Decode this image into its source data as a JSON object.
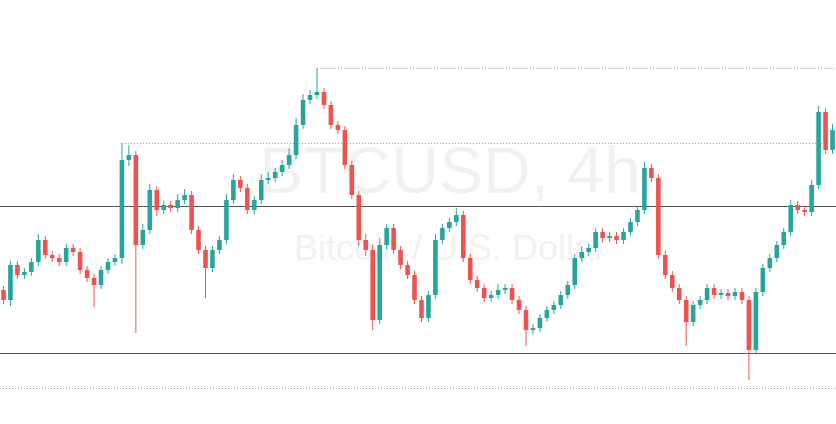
{
  "chart_data": {
    "type": "candlestick",
    "title": "BTCUSD, 4h",
    "subtitle": "Bitcoin / U.S. Dollar",
    "up_color": "#26a69a",
    "down_color": "#ef5350",
    "ylim": [
      0,
      424
    ],
    "levels": [
      {
        "value": 218,
        "style": "solid"
      },
      {
        "value": 71,
        "style": "solid"
      },
      {
        "value": 36,
        "style": "dotted"
      },
      {
        "value": 281,
        "style": "dotted"
      },
      {
        "value": 356,
        "style": "dotted"
      }
    ],
    "open": [
      134,
      124,
      159,
      149,
      152,
      162,
      184,
      169,
      166,
      162,
      176,
      172,
      154,
      146,
      139,
      154,
      162,
      166,
      264,
      269,
      179,
      194,
      234,
      214,
      219,
      216,
      224,
      229,
      194,
      174,
      156,
      174,
      184,
      224,
      244,
      236,
      214,
      224,
      244,
      246,
      252,
      259,
      269,
      299,
      324,
      329,
      332,
      319,
      299,
      294,
      259,
      229,
      184,
      174,
      104,
      179,
      196,
      174,
      159,
      149,
      124,
      106,
      129,
      184,
      196,
      202,
      209,
      166,
      144,
      136,
      126,
      129,
      134,
      136,
      124,
      114,
      94,
      96,
      106,
      114,
      119,
      129,
      139,
      166,
      172,
      176,
      192,
      186,
      188,
      184,
      192,
      202,
      214,
      256,
      246,
      169,
      149,
      136,
      124,
      102,
      119,
      124,
      136,
      129,
      131,
      128,
      132,
      124,
      74,
      132,
      156,
      166,
      179,
      192,
      219,
      214,
      212,
      239,
      312,
      274
    ],
    "high": [
      138,
      163,
      163,
      156,
      166,
      190,
      188,
      173,
      170,
      180,
      180,
      176,
      158,
      150,
      158,
      166,
      170,
      281,
      279,
      273,
      200,
      240,
      238,
      223,
      223,
      230,
      235,
      233,
      198,
      178,
      178,
      188,
      230,
      250,
      248,
      240,
      228,
      250,
      252,
      256,
      264,
      276,
      306,
      330,
      334,
      356,
      336,
      323,
      303,
      298,
      263,
      233,
      190,
      180,
      186,
      200,
      200,
      178,
      163,
      153,
      128,
      133,
      190,
      200,
      206,
      216,
      213,
      170,
      148,
      140,
      133,
      140,
      140,
      140,
      128,
      118,
      100,
      110,
      118,
      123,
      133,
      143,
      170,
      178,
      180,
      196,
      196,
      192,
      192,
      196,
      206,
      218,
      262,
      260,
      250,
      173,
      153,
      140,
      128,
      123,
      128,
      140,
      140,
      135,
      135,
      136,
      136,
      128,
      136,
      160,
      170,
      183,
      196,
      224,
      223,
      218,
      244,
      318,
      316,
      300
    ],
    "low": [
      120,
      118,
      145,
      145,
      148,
      158,
      165,
      162,
      158,
      158,
      168,
      150,
      142,
      117,
      135,
      150,
      158,
      160,
      258,
      91,
      175,
      190,
      208,
      210,
      212,
      212,
      220,
      190,
      170,
      126,
      152,
      170,
      180,
      220,
      232,
      210,
      210,
      220,
      240,
      242,
      248,
      255,
      265,
      295,
      320,
      325,
      315,
      295,
      290,
      255,
      225,
      178,
      168,
      94,
      100,
      175,
      170,
      155,
      145,
      120,
      102,
      102,
      125,
      180,
      192,
      198,
      162,
      140,
      132,
      122,
      122,
      125,
      130,
      120,
      110,
      78,
      90,
      92,
      102,
      110,
      115,
      125,
      135,
      162,
      168,
      172,
      182,
      182,
      180,
      180,
      188,
      198,
      210,
      242,
      165,
      145,
      132,
      120,
      78,
      98,
      115,
      120,
      125,
      125,
      124,
      124,
      120,
      44,
      70,
      128,
      152,
      162,
      175,
      188,
      210,
      208,
      208,
      235,
      270,
      270
    ],
    "close": [
      124,
      159,
      149,
      152,
      162,
      184,
      169,
      166,
      162,
      176,
      172,
      154,
      146,
      139,
      154,
      162,
      166,
      264,
      269,
      179,
      194,
      234,
      214,
      219,
      216,
      224,
      229,
      194,
      174,
      156,
      174,
      184,
      224,
      244,
      236,
      214,
      224,
      244,
      246,
      252,
      259,
      269,
      299,
      324,
      329,
      332,
      319,
      299,
      294,
      259,
      229,
      184,
      174,
      104,
      179,
      196,
      174,
      159,
      149,
      124,
      106,
      129,
      184,
      196,
      202,
      209,
      166,
      144,
      136,
      126,
      129,
      134,
      136,
      124,
      114,
      94,
      96,
      106,
      114,
      119,
      129,
      139,
      166,
      172,
      176,
      192,
      186,
      188,
      184,
      192,
      202,
      214,
      256,
      246,
      169,
      149,
      136,
      124,
      102,
      119,
      124,
      136,
      129,
      131,
      128,
      132,
      124,
      74,
      132,
      156,
      166,
      179,
      192,
      219,
      214,
      212,
      239,
      312,
      274,
      294
    ]
  }
}
